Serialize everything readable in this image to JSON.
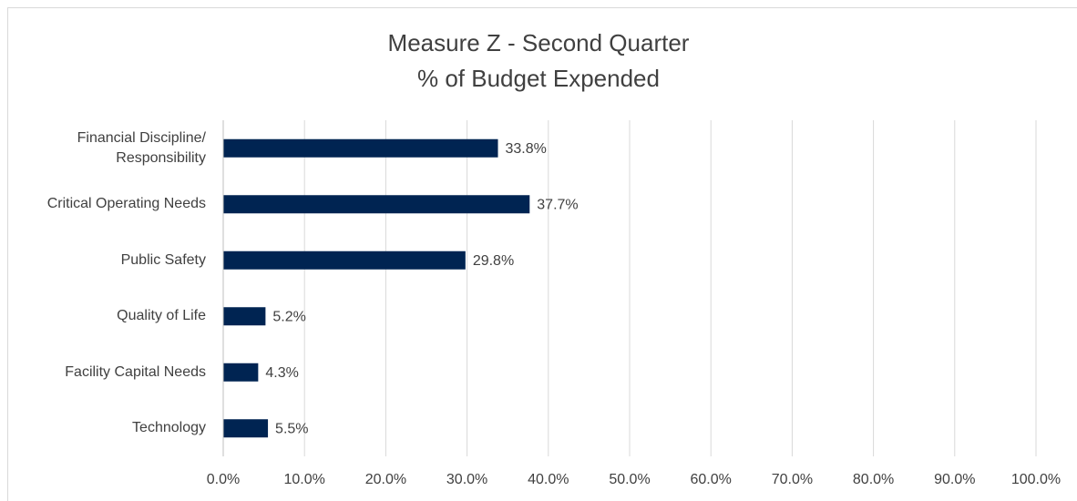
{
  "chart_data": {
    "type": "bar",
    "orientation": "horizontal",
    "title": "Measure Z - Second Quarter\n% of Budget Expended",
    "categories": [
      "Financial Discipline/\nResponsibility",
      "Critical Operating Needs",
      "Public Safety",
      "Quality of Life",
      "Facility Capital Needs",
      "Technology"
    ],
    "values": [
      33.8,
      37.7,
      29.8,
      5.2,
      4.3,
      5.5
    ],
    "value_labels": [
      "33.8%",
      "37.7%",
      "29.8%",
      "5.2%",
      "4.3%",
      "5.5%"
    ],
    "color": "#002452",
    "xlim": [
      0,
      100
    ],
    "xticks": [
      {
        "value": 0,
        "label": "0.0%"
      },
      {
        "value": 10,
        "label": "10.0%"
      },
      {
        "value": 20,
        "label": "20.0%"
      },
      {
        "value": 30,
        "label": "30.0%"
      },
      {
        "value": 40,
        "label": "40.0%"
      },
      {
        "value": 50,
        "label": "50.0%"
      },
      {
        "value": 60,
        "label": "60.0%"
      },
      {
        "value": 70,
        "label": "70.0%"
      },
      {
        "value": 80,
        "label": "80.0%"
      },
      {
        "value": 90,
        "label": "90.0%"
      },
      {
        "value": 100,
        "label": "100.0%"
      }
    ],
    "grid": true
  }
}
